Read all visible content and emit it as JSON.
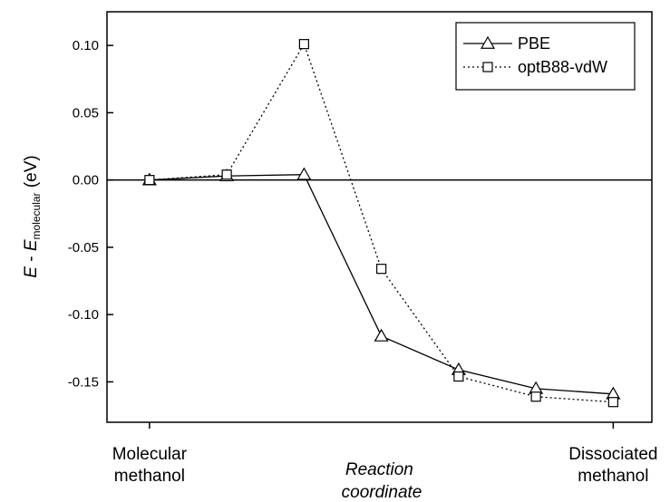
{
  "chart_data": {
    "type": "line",
    "title": "",
    "ylabel": {
      "main": "E",
      "minus": " - ",
      "e": "E",
      "sub": "molecular",
      "unit": " (eV)"
    },
    "xlabel": [
      "Reaction",
      "coordinate"
    ],
    "x_categories": [
      {
        "lines": [
          "Molecular",
          "methanol"
        ],
        "position": 0
      },
      {
        "lines": [
          "Dissociated",
          "methanol"
        ],
        "position": 6
      }
    ],
    "ylim": [
      -0.18,
      0.125
    ],
    "xlim": [
      -0.55,
      6.5
    ],
    "yticks": [
      {
        "value": 0.1,
        "label": "0.10"
      },
      {
        "value": 0.05,
        "label": "0.05"
      },
      {
        "value": 0.0,
        "label": "0.00"
      },
      {
        "value": -0.05,
        "label": "-0.05"
      },
      {
        "value": -0.1,
        "label": "-0.10"
      },
      {
        "value": -0.15,
        "label": "-0.15"
      }
    ],
    "reference_line": 0,
    "legend_position": "top-right",
    "series": [
      {
        "name": "PBE",
        "marker": "triangle",
        "line_style": "solid",
        "points": [
          {
            "x": 0,
            "y": 0.0
          },
          {
            "x": 1,
            "y": 0.003
          },
          {
            "x": 2,
            "y": 0.004
          },
          {
            "x": 3,
            "y": -0.116
          },
          {
            "x": 4,
            "y": -0.141
          },
          {
            "x": 5,
            "y": -0.155
          },
          {
            "x": 6,
            "y": -0.159
          }
        ]
      },
      {
        "name": "optB88-vdW",
        "marker": "square",
        "line_style": "dotted",
        "points": [
          {
            "x": 0,
            "y": 0.0
          },
          {
            "x": 1,
            "y": 0.004
          },
          {
            "x": 2,
            "y": 0.101
          },
          {
            "x": 3,
            "y": -0.066
          },
          {
            "x": 4,
            "y": -0.146
          },
          {
            "x": 5,
            "y": -0.161
          },
          {
            "x": 6,
            "y": -0.165
          }
        ]
      }
    ]
  }
}
